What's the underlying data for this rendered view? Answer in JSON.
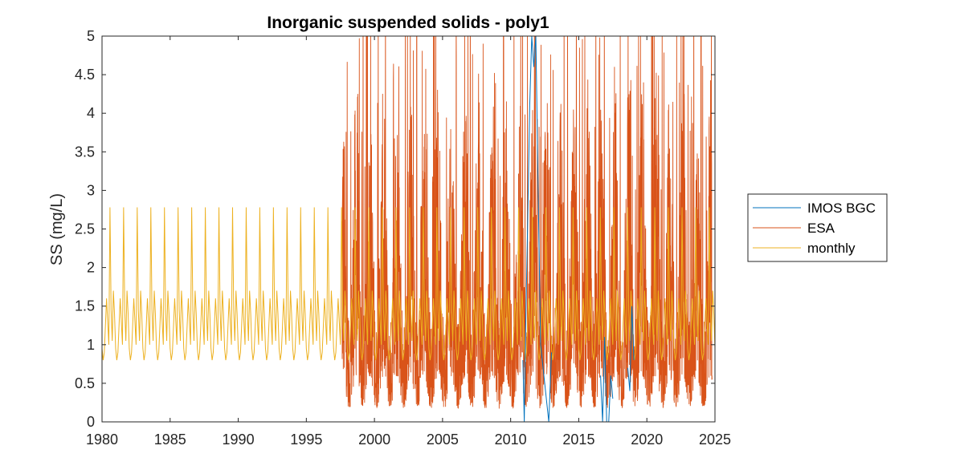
{
  "chart_data": {
    "type": "line",
    "title": "Inorganic suspended solids - poly1",
    "xlabel": "",
    "ylabel": "SS (mg/L)",
    "xlim": [
      1980,
      2025
    ],
    "ylim": [
      0,
      5
    ],
    "xticks": [
      "1980",
      "1985",
      "1990",
      "1995",
      "2000",
      "2005",
      "2010",
      "2015",
      "2020",
      "2025"
    ],
    "yticks": [
      "0",
      "0.5",
      "1",
      "1.5",
      "2",
      "2.5",
      "3",
      "3.5",
      "4",
      "4.5",
      "5"
    ],
    "grid": false,
    "legend_position": "outside-right",
    "series": [
      {
        "name": "IMOS BGC",
        "color": "#0072BD",
        "x": [
          2010.9,
          2011.0,
          2011.1,
          2011.25,
          2011.4,
          2011.55,
          2011.7,
          2011.85,
          2012.0,
          2012.2,
          2012.5,
          2012.8,
          2013.0,
          2016.6,
          2016.75,
          2016.9,
          2017.05,
          2017.2,
          2017.35,
          2017.5,
          2018.6,
          2018.75,
          2018.9,
          2019.05
        ],
        "y": [
          0.8,
          0.0,
          1.2,
          2.6,
          4.1,
          5.0,
          4.6,
          5.0,
          3.2,
          1.0,
          0.5,
          0.0,
          0.9,
          0.6,
          0.0,
          1.1,
          0.0,
          0.0,
          0.6,
          0.3,
          0.7,
          0.4,
          1.5,
          0.8
        ]
      },
      {
        "name": "ESA",
        "color": "#D95319",
        "x_start": 1997.6,
        "x_end": 2024.8,
        "description": "daily satellite-derived values oscillating roughly between 0.2 and 5 (clipped at axis top)"
      },
      {
        "name": "monthly",
        "color": "#EDB120",
        "x_start": 1980,
        "x_end": 2025,
        "monthly_cycle": [
          0.95,
          0.8,
          0.9,
          1.25,
          1.6,
          1.3,
          1.0,
          2.78,
          1.45,
          1.05,
          1.7,
          1.4
        ]
      }
    ]
  }
}
